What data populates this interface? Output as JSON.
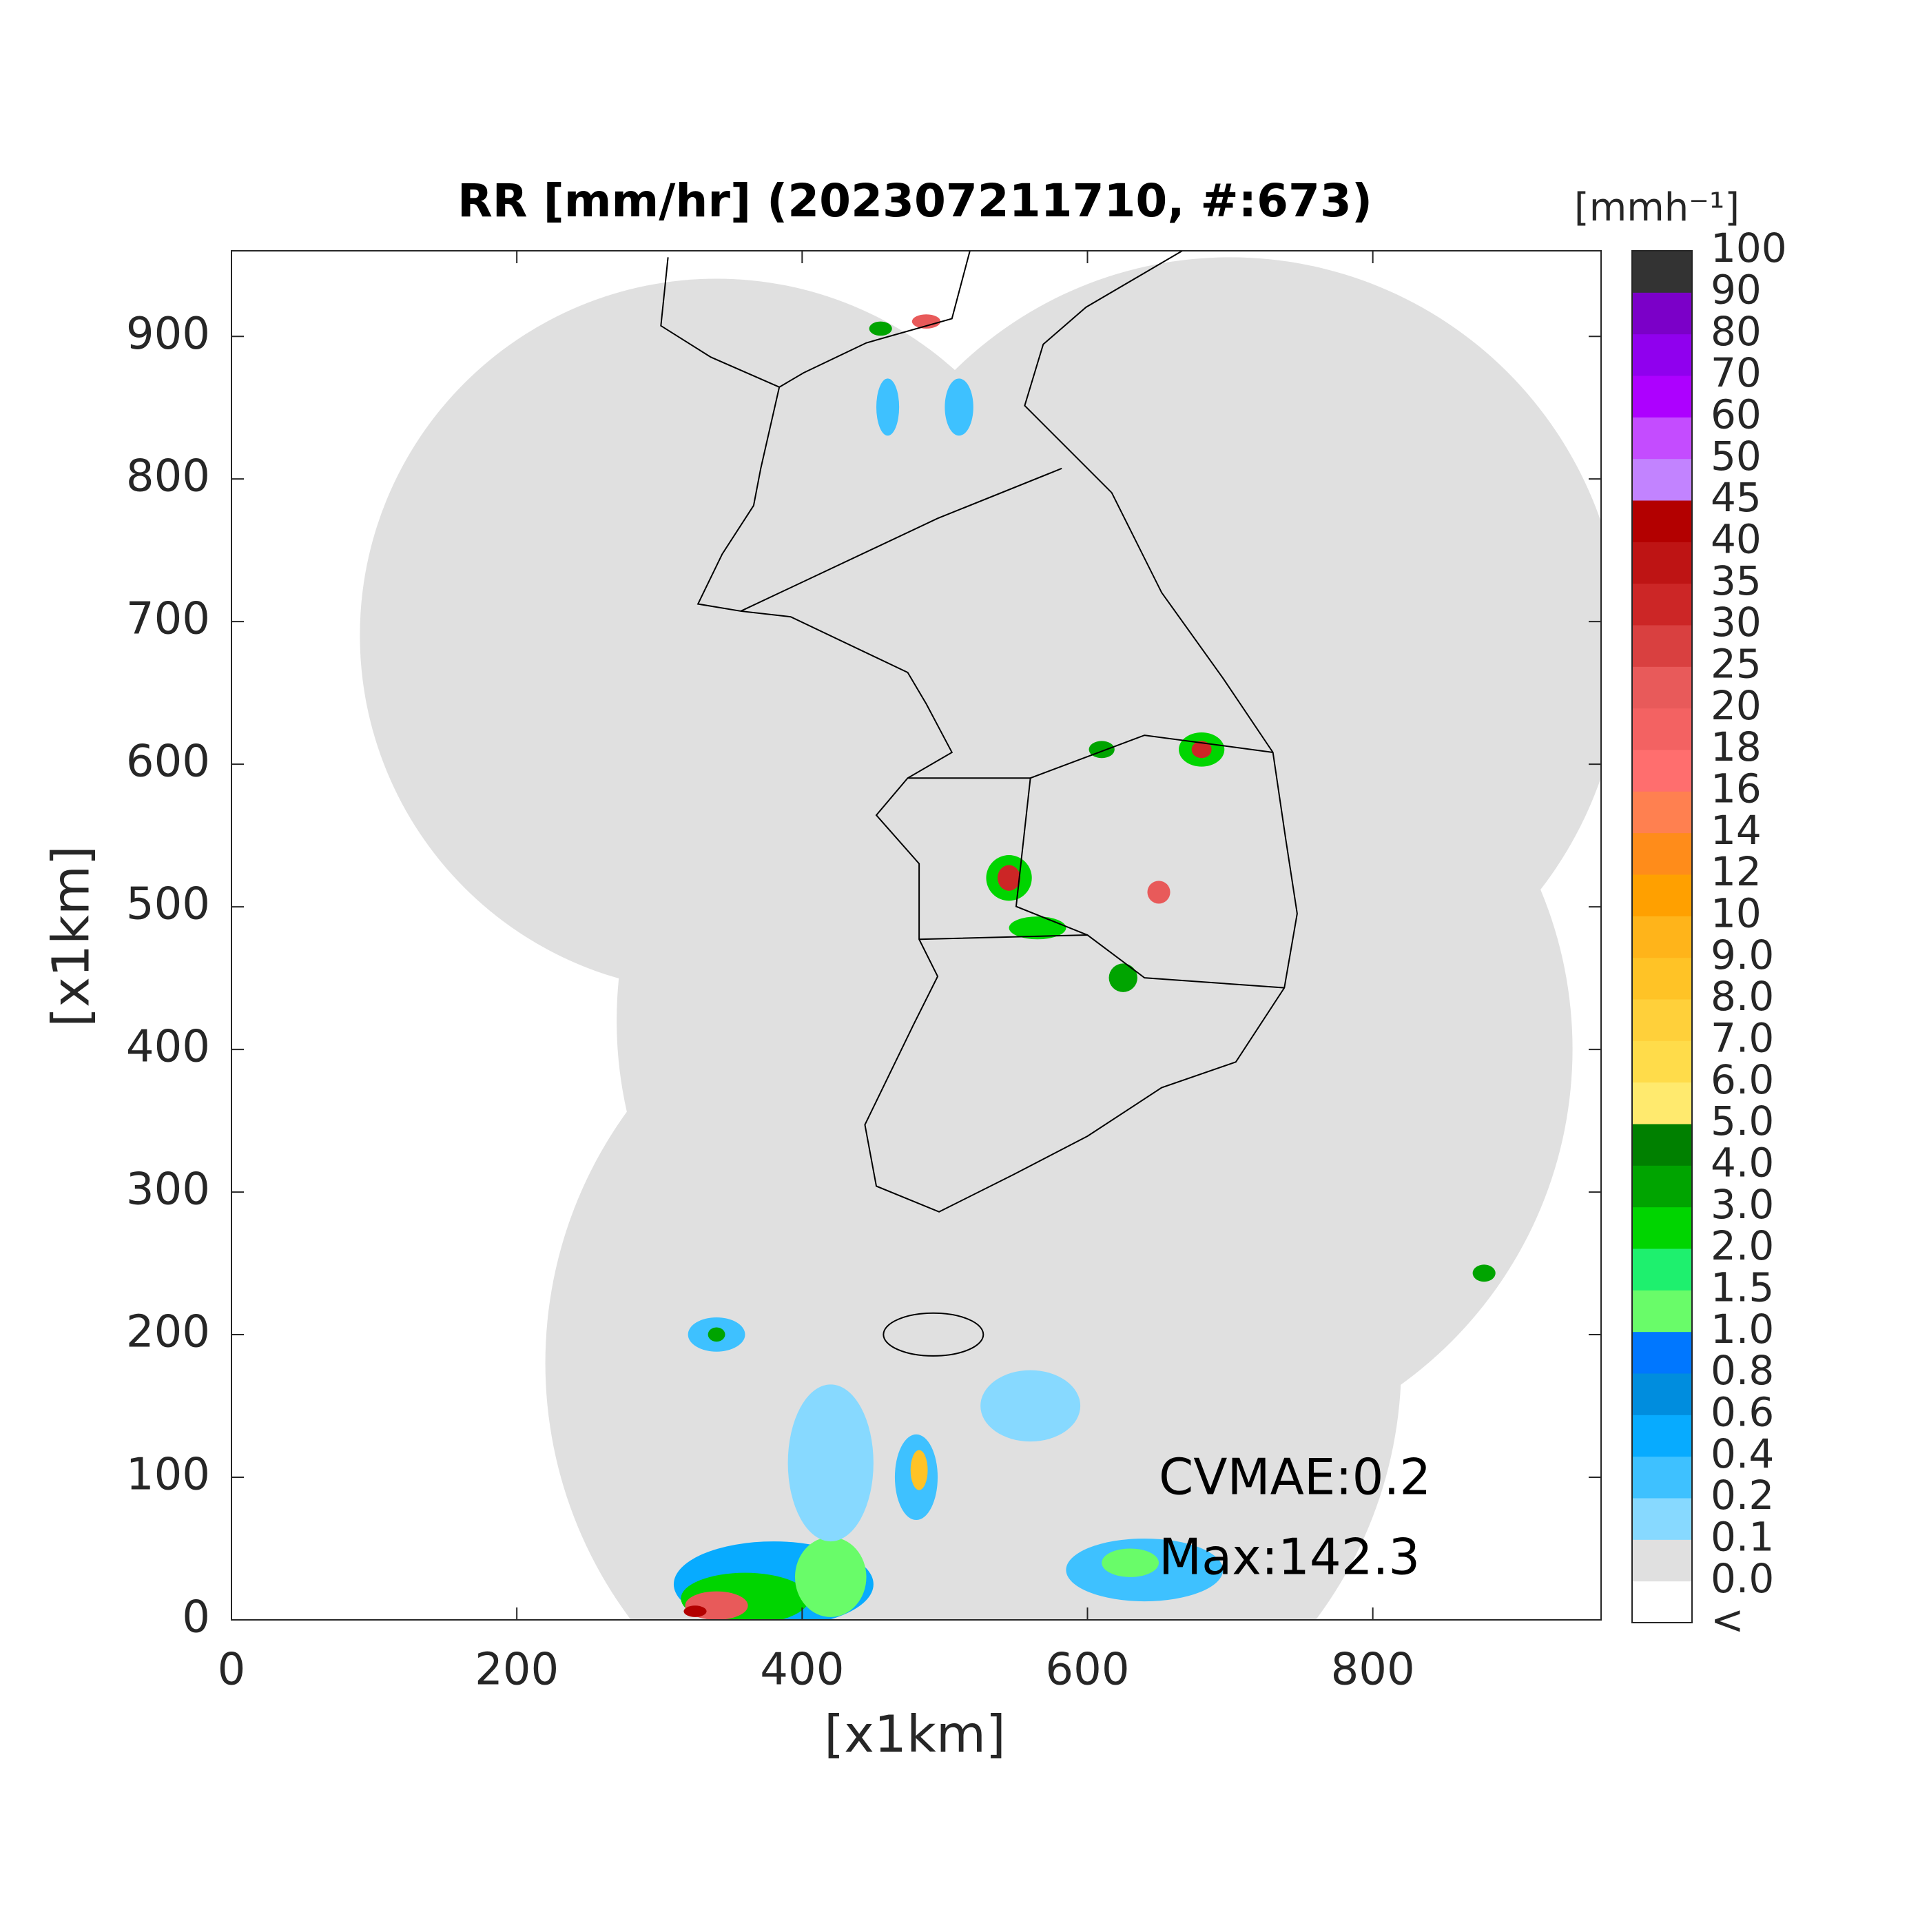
{
  "chart_data": {
    "type": "heatmap",
    "title": "RR [mm/hr] (202307211710, #:673)",
    "xlabel": "[x1km]",
    "ylabel": "[x1km]",
    "xlim": [
      0,
      960
    ],
    "ylim": [
      0,
      960
    ],
    "xticks": [
      0,
      200,
      400,
      600,
      800
    ],
    "yticks": [
      0,
      100,
      200,
      300,
      400,
      500,
      600,
      700,
      800,
      900
    ],
    "colorbar": {
      "label": "[mmh⁻¹]",
      "ticks": [
        "<",
        "0.0",
        "0.1",
        "0.2",
        "0.4",
        "0.6",
        "0.8",
        "1.0",
        "1.5",
        "2.0",
        "3.0",
        "4.0",
        "5.0",
        "6.0",
        "7.0",
        "8.0",
        "9.0",
        "10",
        "12",
        "14",
        "16",
        "18",
        "20",
        "25",
        "30",
        "35",
        "40",
        "45",
        "50",
        "60",
        "70",
        "80",
        "90",
        "100"
      ],
      "colors": [
        "#ffffff",
        "#e0e0e0",
        "#87d9ff",
        "#3ec1ff",
        "#07abff",
        "#008dde",
        "#0077ff",
        "#69fc69",
        "#1ef06e",
        "#00d500",
        "#00a400",
        "#008000",
        "#ffea6e",
        "#ffdc4a",
        "#ffd03a",
        "#ffc326",
        "#ffb41a",
        "#ffa000",
        "#ff8c1a",
        "#ff8050",
        "#ff6e6e",
        "#f36262",
        "#e85a5a",
        "#d94040",
        "#cc2626",
        "#be1414",
        "#b30000",
        "#c283ff",
        "#c44cff",
        "#ad00ff",
        "#9000ee",
        "#7b00c8",
        "#333333"
      ]
    },
    "annotations": [
      "CVMAE:0.2",
      "Max:142.3"
    ]
  }
}
